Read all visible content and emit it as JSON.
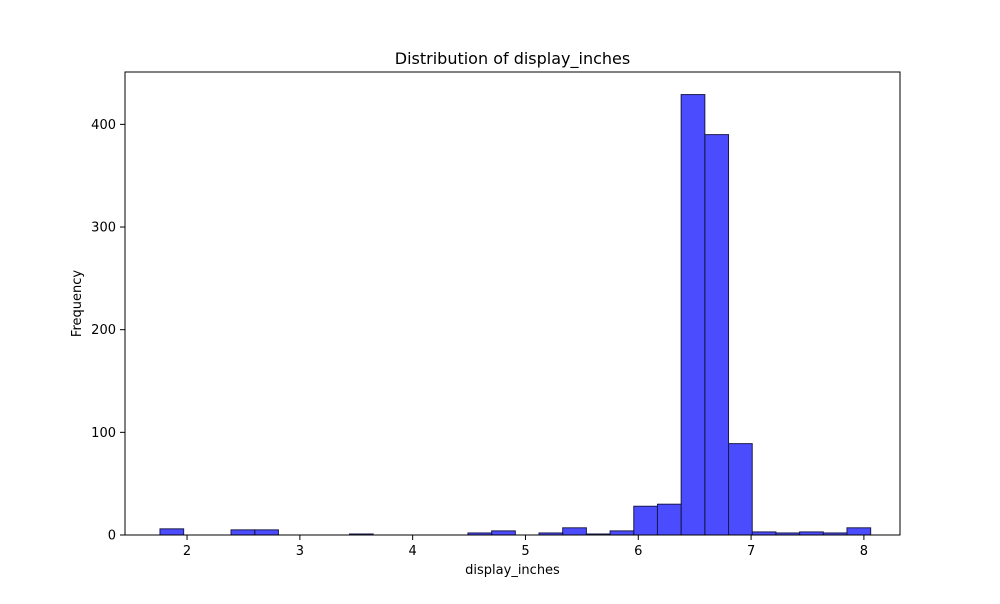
{
  "chart_data": {
    "type": "bar",
    "title": "Distribution of display_inches",
    "xlabel": "display_inches",
    "ylabel": "Frequency",
    "xlim": [
      1.45,
      8.32
    ],
    "ylim": [
      0,
      451
    ],
    "xticks": [
      2,
      3,
      4,
      5,
      6,
      7,
      8
    ],
    "yticks": [
      0,
      100,
      200,
      300,
      400
    ],
    "bar_color": "#0000ff",
    "bar_edge_color": "#1a1a4d",
    "bins": [
      {
        "x0": 1.76,
        "x1": 1.97,
        "count": 6
      },
      {
        "x0": 1.97,
        "x1": 2.18,
        "count": 0
      },
      {
        "x0": 2.18,
        "x1": 2.39,
        "count": 0
      },
      {
        "x0": 2.39,
        "x1": 2.6,
        "count": 5
      },
      {
        "x0": 2.6,
        "x1": 2.81,
        "count": 5
      },
      {
        "x0": 2.81,
        "x1": 3.02,
        "count": 0
      },
      {
        "x0": 3.02,
        "x1": 3.23,
        "count": 0
      },
      {
        "x0": 3.23,
        "x1": 3.44,
        "count": 0
      },
      {
        "x0": 3.44,
        "x1": 3.65,
        "count": 1
      },
      {
        "x0": 3.65,
        "x1": 3.86,
        "count": 0
      },
      {
        "x0": 3.86,
        "x1": 4.07,
        "count": 0
      },
      {
        "x0": 4.07,
        "x1": 4.28,
        "count": 0
      },
      {
        "x0": 4.28,
        "x1": 4.49,
        "count": 0
      },
      {
        "x0": 4.49,
        "x1": 4.7,
        "count": 2
      },
      {
        "x0": 4.7,
        "x1": 4.91,
        "count": 4
      },
      {
        "x0": 4.91,
        "x1": 5.12,
        "count": 0
      },
      {
        "x0": 5.12,
        "x1": 5.33,
        "count": 2
      },
      {
        "x0": 5.33,
        "x1": 5.54,
        "count": 7
      },
      {
        "x0": 5.54,
        "x1": 5.75,
        "count": 1
      },
      {
        "x0": 5.75,
        "x1": 5.96,
        "count": 4
      },
      {
        "x0": 5.96,
        "x1": 6.17,
        "count": 28
      },
      {
        "x0": 6.17,
        "x1": 6.38,
        "count": 30
      },
      {
        "x0": 6.38,
        "x1": 6.59,
        "count": 429
      },
      {
        "x0": 6.59,
        "x1": 6.8,
        "count": 390
      },
      {
        "x0": 6.8,
        "x1": 7.01,
        "count": 89
      },
      {
        "x0": 7.01,
        "x1": 7.22,
        "count": 3
      },
      {
        "x0": 7.22,
        "x1": 7.43,
        "count": 2
      },
      {
        "x0": 7.43,
        "x1": 7.64,
        "count": 3
      },
      {
        "x0": 7.64,
        "x1": 7.85,
        "count": 2
      },
      {
        "x0": 7.85,
        "x1": 8.06,
        "count": 7
      }
    ]
  }
}
